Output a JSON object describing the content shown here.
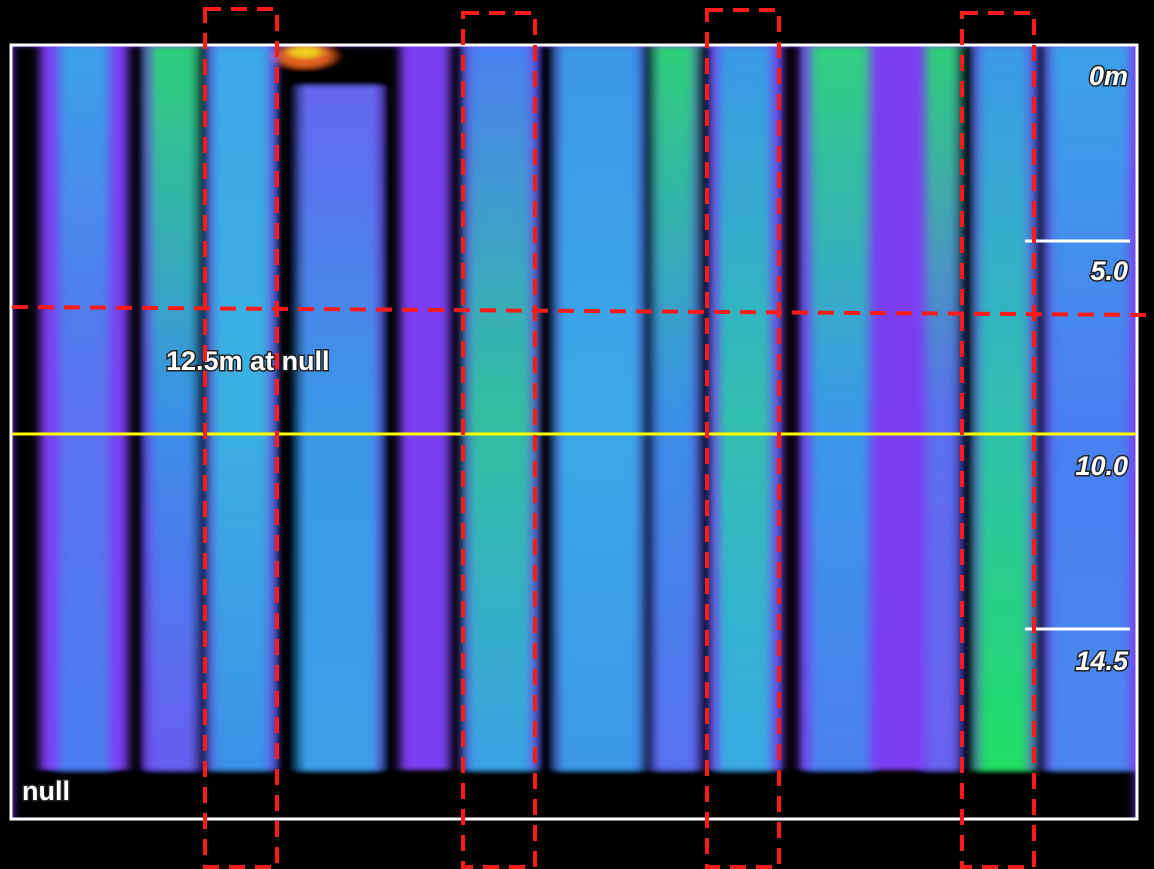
{
  "depth_scale": {
    "labels": [
      "0m",
      "5.0",
      "10.0",
      "14.5"
    ]
  },
  "annotations": {
    "marker_label": "12.5m at null",
    "bottom_label": "null"
  }
}
